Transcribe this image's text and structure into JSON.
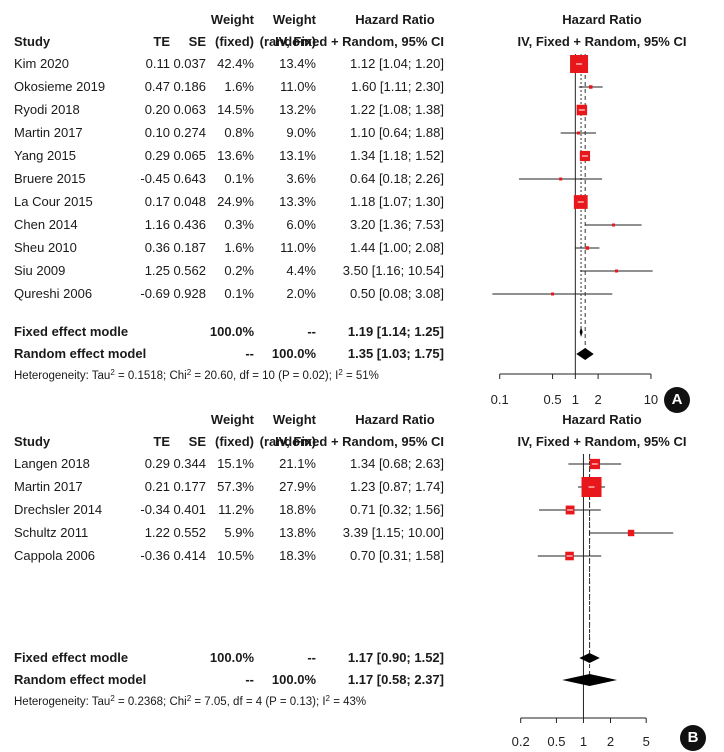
{
  "chart_data": [
    {
      "type": "forest",
      "panel_label": "A",
      "headers": {
        "study": "Study",
        "te": "TE",
        "se": "SE",
        "weight_word": "Weight",
        "fixed": "(fixed)",
        "random": "(random)",
        "hr": "Hazard Ratio",
        "ci": "IV, Fixed + Random, 95% CI",
        "plot_title": "Hazard Ratio",
        "plot_ci": "IV, Fixed + Random, 95% CI"
      },
      "studies": [
        {
          "study": "Kim 2020",
          "te": "0.11",
          "se": "0.037",
          "w_fixed": "42.4%",
          "w_random": "13.4%",
          "hr_text": "1.12 [1.04; 1.20]",
          "hr": 1.12,
          "lo": 1.04,
          "hi": 1.2,
          "weight": 42.4
        },
        {
          "study": "Okosieme 2019",
          "te": "0.47",
          "se": "0.186",
          "w_fixed": "1.6%",
          "w_random": "11.0%",
          "hr_text": "1.60 [1.11; 2.30]",
          "hr": 1.6,
          "lo": 1.11,
          "hi": 2.3,
          "weight": 1.6
        },
        {
          "study": "Ryodi 2018",
          "te": "0.20",
          "se": "0.063",
          "w_fixed": "14.5%",
          "w_random": "13.2%",
          "hr_text": "1.22 [1.08; 1.38]",
          "hr": 1.22,
          "lo": 1.08,
          "hi": 1.38,
          "weight": 14.5
        },
        {
          "study": "Martin 2017",
          "te": "0.10",
          "se": "0.274",
          "w_fixed": "0.8%",
          "w_random": "9.0%",
          "hr_text": "1.10 [0.64; 1.88]",
          "hr": 1.1,
          "lo": 0.64,
          "hi": 1.88,
          "weight": 0.8
        },
        {
          "study": "Yang 2015",
          "te": "0.29",
          "se": "0.065",
          "w_fixed": "13.6%",
          "w_random": "13.1%",
          "hr_text": "1.34 [1.18; 1.52]",
          "hr": 1.34,
          "lo": 1.18,
          "hi": 1.52,
          "weight": 13.6
        },
        {
          "study": "Bruere 2015",
          "te": "-0.45",
          "se": "0.643",
          "w_fixed": "0.1%",
          "w_random": "3.6%",
          "hr_text": "0.64 [0.18; 2.26]",
          "hr": 0.64,
          "lo": 0.18,
          "hi": 2.26,
          "weight": 0.1
        },
        {
          "study": "La Cour 2015",
          "te": "0.17",
          "se": "0.048",
          "w_fixed": "24.9%",
          "w_random": "13.3%",
          "hr_text": "1.18 [1.07; 1.30]",
          "hr": 1.18,
          "lo": 1.07,
          "hi": 1.3,
          "weight": 24.9
        },
        {
          "study": "Chen 2014",
          "te": "1.16",
          "se": "0.436",
          "w_fixed": "0.3%",
          "w_random": "6.0%",
          "hr_text": "3.20 [1.36; 7.53]",
          "hr": 3.2,
          "lo": 1.36,
          "hi": 7.53,
          "weight": 0.3
        },
        {
          "study": "Sheu 2010",
          "te": "0.36",
          "se": "0.187",
          "w_fixed": "1.6%",
          "w_random": "11.0%",
          "hr_text": "1.44 [1.00; 2.08]",
          "hr": 1.44,
          "lo": 1.0,
          "hi": 2.08,
          "weight": 1.6
        },
        {
          "study": "Siu 2009",
          "te": "1.25",
          "se": "0.562",
          "w_fixed": "0.2%",
          "w_random": "4.4%",
          "hr_text": "3.50 [1.16; 10.54]",
          "hr": 3.5,
          "lo": 1.16,
          "hi": 10.54,
          "weight": 0.2
        },
        {
          "study": "Qureshi 2006",
          "te": "-0.69",
          "se": "0.928",
          "w_fixed": "0.1%",
          "w_random": "2.0%",
          "hr_text": "0.50 [0.08; 3.08]",
          "hr": 0.5,
          "lo": 0.08,
          "hi": 3.08,
          "weight": 0.1
        }
      ],
      "fixed": {
        "label": "Fixed effect modle",
        "w_fixed": "100.0%",
        "w_random": "--",
        "hr_text": "1.19 [1.14; 1.25]",
        "hr": 1.19,
        "lo": 1.14,
        "hi": 1.25
      },
      "random": {
        "label": "Random effect model",
        "w_fixed": "--",
        "w_random": "100.0%",
        "hr_text": "1.35 [1.03; 1.75]",
        "hr": 1.35,
        "lo": 1.03,
        "hi": 1.75
      },
      "heterogeneity": {
        "pre": "Heterogeneity: Tau",
        "sup1": "2",
        "mid": " = 0.1518; Chi",
        "sup2": "2",
        "mid2": " = 20.60, df = 10 (P = 0.02); I",
        "sup3": "2",
        "post": " = 51%"
      },
      "xscale": "log",
      "xlim": [
        0.07,
        14
      ],
      "xticks": [
        0.1,
        0.5,
        1,
        2,
        10
      ],
      "xtick_labels": [
        "0.1",
        "0.5",
        "1",
        "2",
        "10"
      ]
    },
    {
      "type": "forest",
      "panel_label": "B",
      "headers": {
        "study": "Study",
        "te": "TE",
        "se": "SE",
        "weight_word": "Weight",
        "fixed": "(fixed)",
        "random": "(random)",
        "hr": "Hazard Ratio",
        "ci": "IV, Fixed + Random, 95% CI",
        "plot_title": "Hazard Ratio",
        "plot_ci": "IV, Fixed + Random, 95% CI"
      },
      "studies": [
        {
          "study": "Langen 2018",
          "te": "0.29",
          "se": "0.344",
          "w_fixed": "15.1%",
          "w_random": "21.1%",
          "hr_text": "1.34 [0.68; 2.63]",
          "hr": 1.34,
          "lo": 0.68,
          "hi": 2.63,
          "weight": 15.1
        },
        {
          "study": "Martin 2017",
          "te": "0.21",
          "se": "0.177",
          "w_fixed": "57.3%",
          "w_random": "27.9%",
          "hr_text": "1.23 [0.87; 1.74]",
          "hr": 1.23,
          "lo": 0.87,
          "hi": 1.74,
          "weight": 57.3
        },
        {
          "study": "Drechsler 2014",
          "te": "-0.34",
          "se": "0.401",
          "w_fixed": "11.2%",
          "w_random": "18.8%",
          "hr_text": "0.71 [0.32; 1.56]",
          "hr": 0.71,
          "lo": 0.32,
          "hi": 1.56,
          "weight": 11.2
        },
        {
          "study": "Schultz 2011",
          "te": "1.22",
          "se": "0.552",
          "w_fixed": "5.9%",
          "w_random": "13.8%",
          "hr_text": "3.39 [1.15; 10.00]",
          "hr": 3.39,
          "lo": 1.15,
          "hi": 10.0,
          "weight": 5.9
        },
        {
          "study": "Cappola 2006",
          "te": "-0.36",
          "se": "0.414",
          "w_fixed": "10.5%",
          "w_random": "18.3%",
          "hr_text": "0.70 [0.31; 1.58]",
          "hr": 0.7,
          "lo": 0.31,
          "hi": 1.58,
          "weight": 10.5
        }
      ],
      "fixed": {
        "label": "Fixed effect modle",
        "w_fixed": "100.0%",
        "w_random": "--",
        "hr_text": "1.17 [0.90; 1.52]",
        "hr": 1.17,
        "lo": 0.9,
        "hi": 1.52
      },
      "random": {
        "label": "Random effect model",
        "w_fixed": "--",
        "w_random": "100.0%",
        "hr_text": "1.17 [0.58; 2.37]",
        "hr": 1.17,
        "lo": 0.58,
        "hi": 2.37
      },
      "heterogeneity": {
        "pre": "Heterogeneity: Tau",
        "sup1": "2",
        "mid": " = 0.2368; Chi",
        "sup2": "2",
        "mid2": " = 7.05, df = 4 (P = 0.13); I",
        "sup3": "2",
        "post": " = 43%"
      },
      "xscale": "log",
      "xlim": [
        0.16,
        7.5
      ],
      "xticks": [
        0.2,
        0.5,
        1,
        2,
        5
      ],
      "xtick_labels": [
        "0.2",
        "0.5",
        "1",
        "2",
        "5"
      ]
    }
  ],
  "colors": {
    "square": "#e8171b",
    "line": "#222222",
    "diamond": "#000000",
    "badge": "#111111"
  }
}
